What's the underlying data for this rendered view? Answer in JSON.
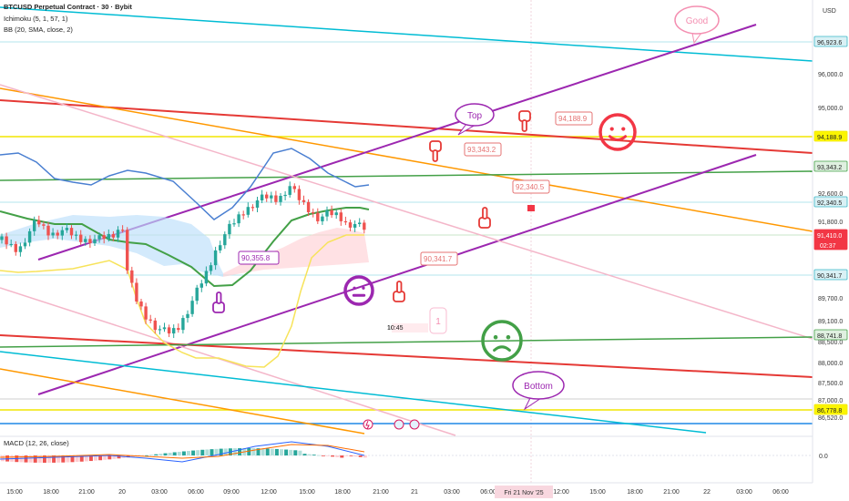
{
  "header": {
    "symbol": "BTCUSD Perpetual Contract · 30 · Bybit",
    "ichimoku": "Ichimoku (5, 1, 57, 1)",
    "bb": "BB (20, SMA, close, 2)",
    "macd": "MACD (12, 26, close)"
  },
  "chart_data": {
    "type": "candlestick",
    "currency": "USD",
    "y_ticks": [
      "96,000.0",
      "95,000.0",
      "92,600.0",
      "91,800.0",
      "89,700.0",
      "89,100.0",
      "88,500.0",
      "88,000.0",
      "87,500.0",
      "87,000.0",
      "86,520.0"
    ],
    "price_tags": [
      {
        "label": "96,923.6",
        "color": "#3ab6c8",
        "fill": "#d9f1f5",
        "text_color": "#222222"
      },
      {
        "label": "94,188.9",
        "color": "#f2e600",
        "fill": "#fbf500",
        "text_color": "#222222"
      },
      {
        "label": "93,343.2",
        "color": "#43a047",
        "fill": "#dff0e0",
        "text_color": "#222222"
      },
      {
        "label": "92,340.5",
        "color": "#3ab6c8",
        "fill": "#d9f1f5",
        "text_color": "#222222"
      },
      {
        "label": "91,410.0",
        "sub": "02:37",
        "color": "#f23645",
        "fill": "#f23645",
        "text_color": "#ffffff"
      },
      {
        "label": "90,341.7",
        "color": "#3ab6c8",
        "fill": "#d9f1f5",
        "text_color": "#222222"
      },
      {
        "label": "88,741.8",
        "color": "#43a047",
        "fill": "#dff0e0",
        "text_color": "#222222"
      },
      {
        "label": "86,778.8",
        "color": "#f2e600",
        "fill": "#fbf500",
        "text_color": "#222222"
      }
    ],
    "x_ticks": [
      "15:00",
      "18:00",
      "21:00",
      "20",
      "03:00",
      "06:00",
      "09:00",
      "12:00",
      "15:00",
      "18:00",
      "21:00",
      "21",
      "03:00",
      "06:00",
      "09:00",
      "12:00",
      "15:00",
      "18:00",
      "21:00",
      "22",
      "03:00",
      "06:00"
    ],
    "x_highlight": "Fri 21 Nov '25",
    "macd_zero": "0.0",
    "callouts": [
      "90,355.8",
      "90,341.7",
      "93,343.2",
      "92,340.5",
      "94,188.9"
    ],
    "bubbles": {
      "top": "Top",
      "good": "Good",
      "bottom": "Bottom"
    },
    "countdown": "10:45",
    "counter": "1",
    "colors": {
      "up": "#26a69a",
      "down": "#ef5350",
      "purple": "#9c27b0",
      "red": "#e53935",
      "orange": "#ff9800",
      "green": "#43a047",
      "teal": "#00bcd4",
      "pink": "#f4b6c9",
      "yellow": "#f2e600"
    }
  }
}
